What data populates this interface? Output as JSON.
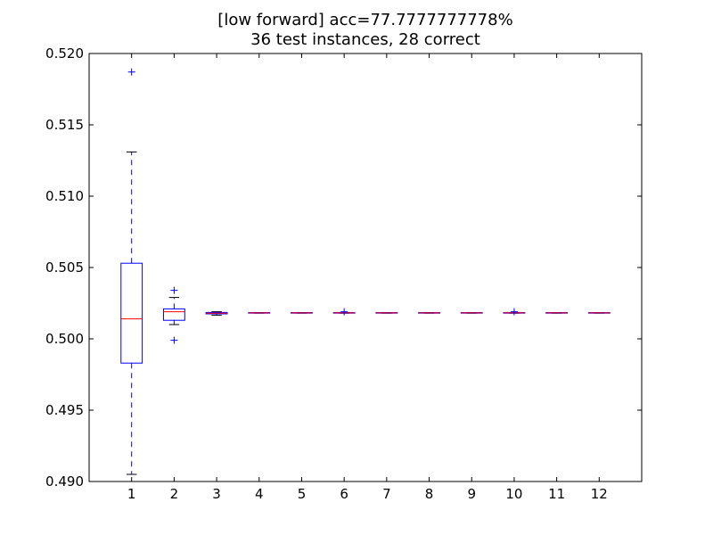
{
  "chart_data": {
    "type": "box",
    "title": "[low forward] acc=77.7777777778%",
    "subtitle": "36 test instances, 28 correct",
    "xlabel": "",
    "ylabel": "",
    "ylim": [
      0.49,
      0.52
    ],
    "grid": false,
    "y_ticks": [
      "0.490",
      "0.495",
      "0.500",
      "0.505",
      "0.510",
      "0.515",
      "0.520"
    ],
    "categories": [
      "1",
      "2",
      "3",
      "4",
      "5",
      "6",
      "7",
      "8",
      "9",
      "10",
      "11",
      "12"
    ],
    "boxes": [
      {
        "q1": 0.4983,
        "median": 0.5014,
        "q3": 0.5053,
        "whislo": 0.4905,
        "whishi": 0.5131,
        "fliers": [
          0.5187
        ]
      },
      {
        "q1": 0.5013,
        "median": 0.5019,
        "q3": 0.5021,
        "whislo": 0.501,
        "whishi": 0.5029,
        "fliers": [
          0.5034,
          0.4999
        ]
      },
      {
        "q1": 0.50175,
        "median": 0.5018,
        "q3": 0.50185,
        "whislo": 0.50165,
        "whishi": 0.5019,
        "fliers": []
      },
      {
        "q1": 0.5018,
        "median": 0.50182,
        "q3": 0.50184,
        "whislo": 0.5018,
        "whishi": 0.50184,
        "fliers": []
      },
      {
        "q1": 0.5018,
        "median": 0.50182,
        "q3": 0.50184,
        "whislo": 0.5018,
        "whishi": 0.50184,
        "fliers": []
      },
      {
        "q1": 0.5018,
        "median": 0.50182,
        "q3": 0.50184,
        "whislo": 0.5018,
        "whishi": 0.50184,
        "fliers": [
          0.5019
        ]
      },
      {
        "q1": 0.5018,
        "median": 0.50182,
        "q3": 0.50184,
        "whislo": 0.5018,
        "whishi": 0.50184,
        "fliers": []
      },
      {
        "q1": 0.5018,
        "median": 0.50182,
        "q3": 0.50184,
        "whislo": 0.5018,
        "whishi": 0.50184,
        "fliers": []
      },
      {
        "q1": 0.5018,
        "median": 0.50182,
        "q3": 0.50184,
        "whislo": 0.5018,
        "whishi": 0.50184,
        "fliers": []
      },
      {
        "q1": 0.5018,
        "median": 0.50182,
        "q3": 0.50184,
        "whislo": 0.5018,
        "whishi": 0.50184,
        "fliers": [
          0.5019
        ]
      },
      {
        "q1": 0.5018,
        "median": 0.50182,
        "q3": 0.50184,
        "whislo": 0.5018,
        "whishi": 0.50184,
        "fliers": []
      },
      {
        "q1": 0.5018,
        "median": 0.50182,
        "q3": 0.50184,
        "whislo": 0.5018,
        "whishi": 0.50184,
        "fliers": []
      }
    ],
    "colors": {
      "box": "#0000ff",
      "median": "#ff0000",
      "whisker": "#0000ff",
      "cap": "#000000",
      "flier": "#0000ff",
      "axes": "#000000"
    }
  }
}
